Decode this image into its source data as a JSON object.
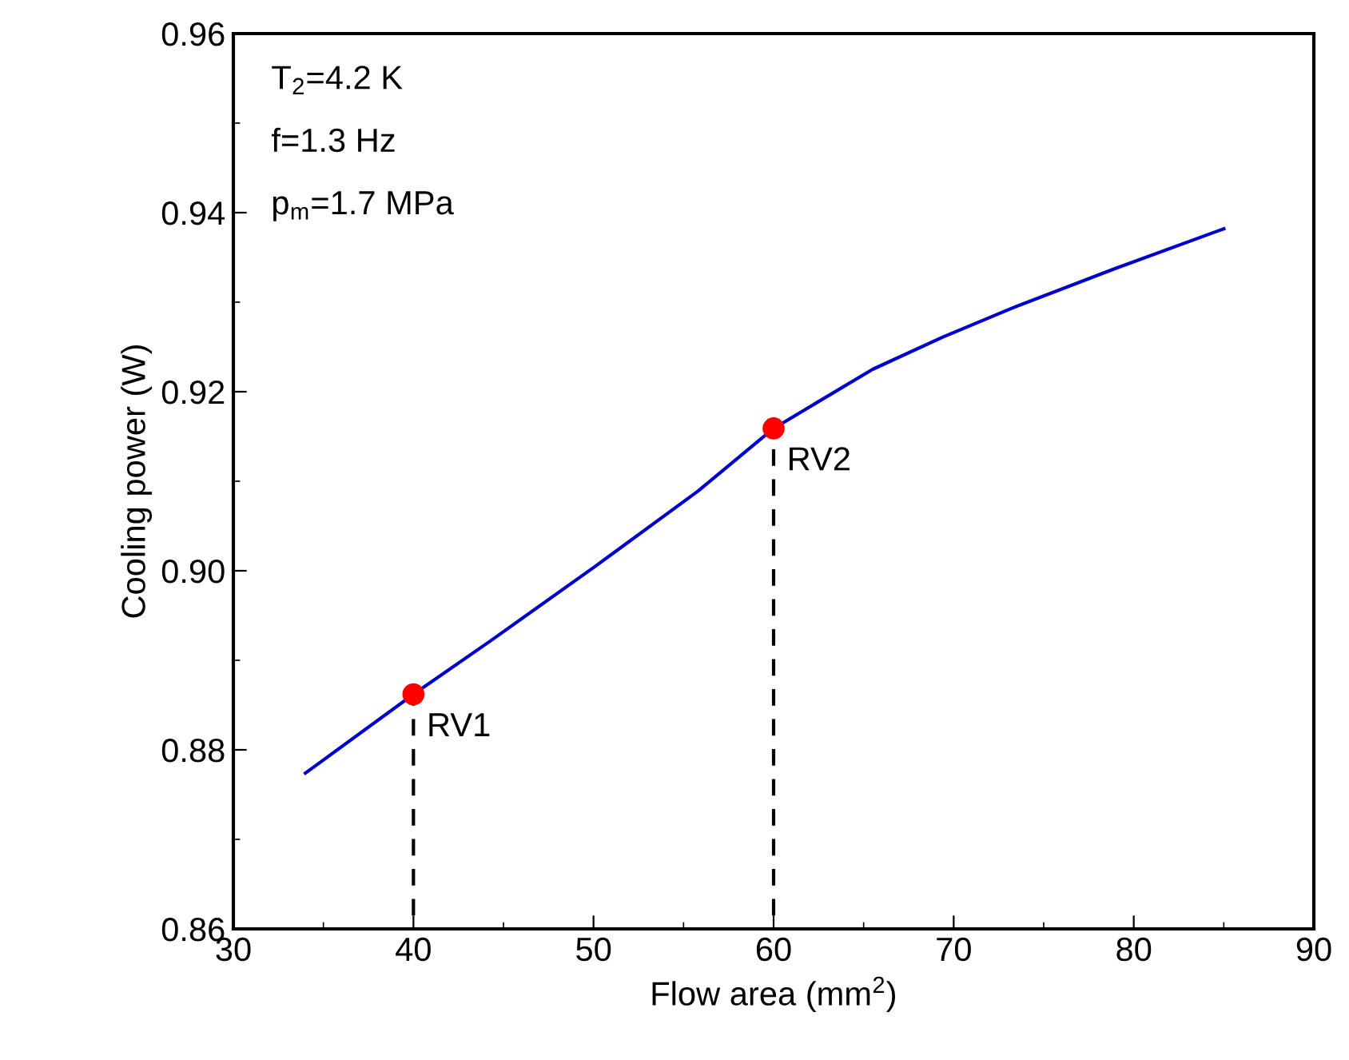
{
  "chart_data": {
    "type": "line",
    "xlabel": "Flow area (mm$^{2}$)",
    "ylabel": "Cooling power (W)",
    "series": [
      {
        "type": "line",
        "color": "#0000cc",
        "x": [
          34.0,
          40,
          44.3,
          50.1,
          55.8,
          60,
          65.5,
          69.4,
          73.2,
          78.9,
          85.0
        ],
        "values": [
          0.8774,
          0.8862,
          0.8922,
          0.9005,
          0.9089,
          0.9159,
          0.9225,
          0.9261,
          0.9293,
          0.9337,
          0.9382
        ]
      },
      {
        "type": "line",
        "color": "#000000",
        "line_style": "dashed",
        "x": [
          40,
          40
        ],
        "values": [
          0.86,
          0.8862
        ]
      },
      {
        "type": "line",
        "color": "#000000",
        "line_style": "dashed",
        "x": [
          60,
          60
        ],
        "values": [
          0.86,
          0.9159
        ]
      },
      {
        "type": "scatter",
        "color": "#ff0000",
        "marker": "circle",
        "x": [
          40,
          60
        ],
        "values": [
          0.8862,
          0.9159
        ]
      }
    ],
    "annotations": [
      {
        "text": "RV1",
        "x": 40,
        "y": 0.8862
      },
      {
        "text": "RV2",
        "x": 60,
        "y": 0.9159
      },
      "T$_{2}$=4.2 K",
      "f=1.3 Hz",
      "p$_{m}$=1.7 MPa"
    ],
    "xlim": [
      30,
      90
    ],
    "xticks": [
      30,
      40,
      50,
      60,
      70,
      80,
      90
    ],
    "ylim": [
      0.86,
      0.96
    ],
    "yticks": [
      {
        "value": 0.86,
        "label": "0.86"
      },
      {
        "value": 0.88,
        "label": "0.88"
      },
      {
        "value": 0.9,
        "label": "0.90"
      },
      {
        "value": 0.92,
        "label": "0.92"
      },
      {
        "value": 0.94,
        "label": "0.94"
      },
      {
        "value": 0.96,
        "label": "0.96"
      }
    ],
    "grid": false,
    "legend": false
  }
}
